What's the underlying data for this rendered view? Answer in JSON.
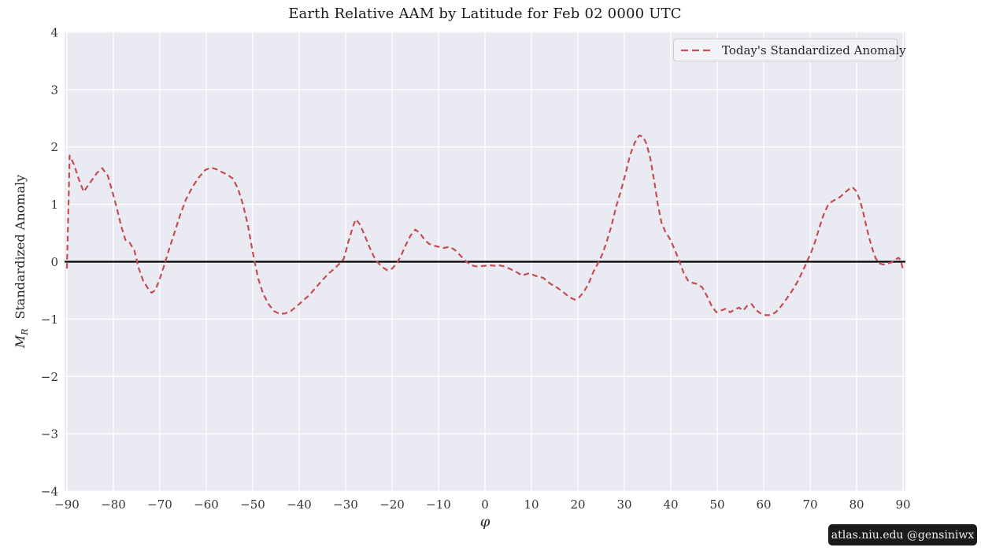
{
  "watermark": {
    "text": "atlas.niu.edu  @gensiniwx"
  },
  "chart_data": {
    "type": "line",
    "title": "Earth Relative AAM by Latitude for Feb 02 0000 UTC",
    "xlabel": "φ",
    "ylabel": "M_R  Standardized Anomaly",
    "ylabel_var": "M",
    "ylabel_var_sub": "R",
    "ylabel_rest": "Standardized Anomaly",
    "xlim": [
      -90,
      90
    ],
    "ylim": [
      -4,
      4
    ],
    "x_ticks": [
      -90,
      -80,
      -70,
      -60,
      -50,
      -40,
      -30,
      -20,
      -10,
      0,
      10,
      20,
      30,
      40,
      50,
      60,
      70,
      80,
      90
    ],
    "y_ticks": [
      -4,
      -3,
      -2,
      -1,
      0,
      1,
      2,
      3,
      4
    ],
    "grid": true,
    "zero_line": true,
    "legend_position": "upper right",
    "colors": {
      "plot_bg": "#eaeaf2",
      "grid": "#ffffff",
      "zero_line": "#000000",
      "tick_text": "#333333",
      "legend_bg": "#f2f3f8",
      "legend_border": "#cccccc",
      "watermark_bg": "#1a1a1a",
      "watermark_text": "#f2f2f2"
    },
    "series": [
      {
        "name": "Today's Standardized Anomaly",
        "color": "#c44e52",
        "style": "dashed",
        "points": [
          [
            -90,
            -0.12
          ],
          [
            -89.4,
            1.85
          ],
          [
            -88.5,
            1.7
          ],
          [
            -87.5,
            1.45
          ],
          [
            -86.4,
            1.22
          ],
          [
            -85,
            1.38
          ],
          [
            -83.5,
            1.55
          ],
          [
            -82.4,
            1.63
          ],
          [
            -81.2,
            1.5
          ],
          [
            -80.2,
            1.22
          ],
          [
            -79.3,
            0.95
          ],
          [
            -78.3,
            0.62
          ],
          [
            -77.4,
            0.38
          ],
          [
            -76.5,
            0.33
          ],
          [
            -75.5,
            0.2
          ],
          [
            -74.6,
            -0.1
          ],
          [
            -73.6,
            -0.33
          ],
          [
            -72.6,
            -0.46
          ],
          [
            -71.8,
            -0.54
          ],
          [
            -71,
            -0.5
          ],
          [
            -70.1,
            -0.32
          ],
          [
            -69,
            -0.05
          ],
          [
            -68,
            0.22
          ],
          [
            -66.8,
            0.52
          ],
          [
            -65.6,
            0.82
          ],
          [
            -64.4,
            1.08
          ],
          [
            -63,
            1.3
          ],
          [
            -61.6,
            1.47
          ],
          [
            -60.2,
            1.6
          ],
          [
            -59,
            1.64
          ],
          [
            -57.8,
            1.61
          ],
          [
            -56.6,
            1.56
          ],
          [
            -55.5,
            1.52
          ],
          [
            -54.3,
            1.45
          ],
          [
            -53.2,
            1.28
          ],
          [
            -52.1,
            1.0
          ],
          [
            -51,
            0.62
          ],
          [
            -50.3,
            0.3
          ],
          [
            -49.6,
            0.0
          ],
          [
            -48.8,
            -0.3
          ],
          [
            -47.8,
            -0.55
          ],
          [
            -46.6,
            -0.74
          ],
          [
            -45.4,
            -0.86
          ],
          [
            -44.2,
            -0.91
          ],
          [
            -43,
            -0.9
          ],
          [
            -41.8,
            -0.86
          ],
          [
            -40.6,
            -0.78
          ],
          [
            -39.2,
            -0.68
          ],
          [
            -37.8,
            -0.58
          ],
          [
            -36.4,
            -0.45
          ],
          [
            -35,
            -0.32
          ],
          [
            -33.6,
            -0.2
          ],
          [
            -32.4,
            -0.12
          ],
          [
            -31.4,
            -0.04
          ],
          [
            -30.4,
            0.05
          ],
          [
            -29.4,
            0.35
          ],
          [
            -28.4,
            0.62
          ],
          [
            -27.8,
            0.74
          ],
          [
            -27,
            0.66
          ],
          [
            -26,
            0.48
          ],
          [
            -25,
            0.28
          ],
          [
            -24,
            0.1
          ],
          [
            -23,
            -0.02
          ],
          [
            -22,
            -0.1
          ],
          [
            -21,
            -0.15
          ],
          [
            -20,
            -0.12
          ],
          [
            -19,
            -0.03
          ],
          [
            -18,
            0.12
          ],
          [
            -17,
            0.3
          ],
          [
            -16,
            0.46
          ],
          [
            -15,
            0.56
          ],
          [
            -14,
            0.5
          ],
          [
            -13,
            0.38
          ],
          [
            -12,
            0.31
          ],
          [
            -11,
            0.28
          ],
          [
            -10,
            0.26
          ],
          [
            -8.8,
            0.24
          ],
          [
            -7.6,
            0.26
          ],
          [
            -6.4,
            0.2
          ],
          [
            -5.2,
            0.1
          ],
          [
            -4,
            0.0
          ],
          [
            -3,
            -0.06
          ],
          [
            -2,
            -0.08
          ],
          [
            -1,
            -0.08
          ],
          [
            0,
            -0.07
          ],
          [
            1,
            -0.06
          ],
          [
            2,
            -0.07
          ],
          [
            3,
            -0.06
          ],
          [
            4,
            -0.08
          ],
          [
            5,
            -0.11
          ],
          [
            6,
            -0.15
          ],
          [
            7,
            -0.19
          ],
          [
            8,
            -0.24
          ],
          [
            9.5,
            -0.2
          ],
          [
            11,
            -0.25
          ],
          [
            12.5,
            -0.28
          ],
          [
            14,
            -0.38
          ],
          [
            15.5,
            -0.45
          ],
          [
            17,
            -0.54
          ],
          [
            18.2,
            -0.62
          ],
          [
            19.3,
            -0.66
          ],
          [
            20.3,
            -0.62
          ],
          [
            21.3,
            -0.52
          ],
          [
            22.3,
            -0.38
          ],
          [
            23.3,
            -0.18
          ],
          [
            24.3,
            -0.03
          ],
          [
            25.2,
            0.12
          ],
          [
            26.2,
            0.35
          ],
          [
            27.2,
            0.62
          ],
          [
            28.2,
            0.95
          ],
          [
            29.2,
            1.22
          ],
          [
            30.2,
            1.52
          ],
          [
            31.2,
            1.85
          ],
          [
            32.2,
            2.07
          ],
          [
            33.2,
            2.2
          ],
          [
            34,
            2.18
          ],
          [
            34.8,
            2.05
          ],
          [
            35.6,
            1.8
          ],
          [
            36.4,
            1.42
          ],
          [
            37.2,
            1.0
          ],
          [
            38,
            0.68
          ],
          [
            38.8,
            0.53
          ],
          [
            39.8,
            0.4
          ],
          [
            40.8,
            0.22
          ],
          [
            41.8,
            0.02
          ],
          [
            42.8,
            -0.2
          ],
          [
            43.8,
            -0.34
          ],
          [
            44.8,
            -0.37
          ],
          [
            45.8,
            -0.39
          ],
          [
            46.8,
            -0.45
          ],
          [
            47.8,
            -0.6
          ],
          [
            48.8,
            -0.77
          ],
          [
            49.8,
            -0.88
          ],
          [
            50.8,
            -0.85
          ],
          [
            51.8,
            -0.82
          ],
          [
            52.8,
            -0.88
          ],
          [
            53.8,
            -0.83
          ],
          [
            54.7,
            -0.8
          ],
          [
            55.6,
            -0.85
          ],
          [
            56.5,
            -0.76
          ],
          [
            57.4,
            -0.74
          ],
          [
            58.3,
            -0.84
          ],
          [
            59.3,
            -0.9
          ],
          [
            60.4,
            -0.93
          ],
          [
            61.5,
            -0.93
          ],
          [
            62.6,
            -0.88
          ],
          [
            63.7,
            -0.78
          ],
          [
            64.8,
            -0.66
          ],
          [
            66,
            -0.52
          ],
          [
            67.2,
            -0.36
          ],
          [
            68.3,
            -0.18
          ],
          [
            69.3,
            0.0
          ],
          [
            70.2,
            0.16
          ],
          [
            71.1,
            0.36
          ],
          [
            72,
            0.6
          ],
          [
            72.9,
            0.82
          ],
          [
            73.8,
            0.98
          ],
          [
            74.7,
            1.05
          ],
          [
            75.6,
            1.09
          ],
          [
            76.5,
            1.13
          ],
          [
            77.4,
            1.2
          ],
          [
            78.3,
            1.26
          ],
          [
            79.1,
            1.3
          ],
          [
            79.9,
            1.23
          ],
          [
            80.6,
            1.1
          ],
          [
            81.3,
            0.9
          ],
          [
            82,
            0.65
          ],
          [
            82.7,
            0.42
          ],
          [
            83.4,
            0.22
          ],
          [
            84.1,
            0.06
          ],
          [
            84.9,
            -0.03
          ],
          [
            85.8,
            -0.05
          ],
          [
            86.7,
            -0.03
          ],
          [
            87.6,
            -0.01
          ],
          [
            88.4,
            0.04
          ],
          [
            89,
            0.07
          ],
          [
            89.5,
            0.03
          ],
          [
            90,
            -0.14
          ]
        ]
      }
    ]
  }
}
